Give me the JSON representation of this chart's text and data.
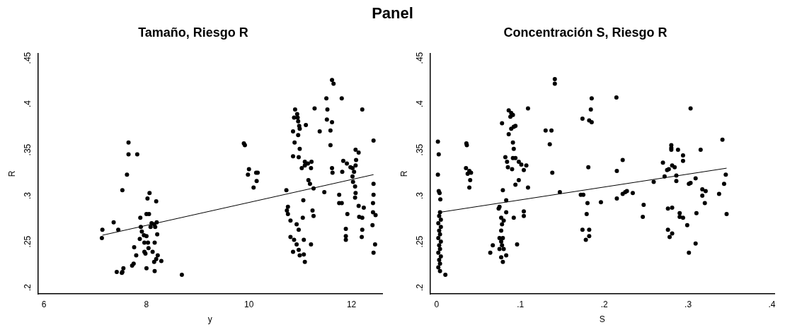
{
  "chart_data": [
    {
      "type": "scatter",
      "title": "Tamaño, Riesgo R",
      "annotations": [
        "Panel"
      ],
      "xlabel": "y",
      "ylabel": "R",
      "grid": false,
      "legend": false,
      "xlim": [
        5.88,
        12.6
      ],
      "ylim": [
        0.193,
        0.455
      ],
      "xticks": [
        6,
        8,
        10,
        12
      ],
      "yticks": [
        {
          "value": 0.2,
          "label": ".2"
        },
        {
          "value": 0.25,
          "label": ".25"
        },
        {
          "value": 0.3,
          "label": ".3"
        },
        {
          "value": 0.35,
          "label": ".35"
        },
        {
          "value": 0.4,
          "label": ".4"
        },
        {
          "value": 0.45,
          "label": ".45"
        }
      ],
      "series": [
        {
          "color": "#000000",
          "marker": "circle",
          "x": [
            7.65,
            7.65,
            7.82,
            7.62,
            7.53,
            8.06,
            8.02,
            8.19,
            7.88,
            8.0,
            8.05,
            7.36,
            7.14,
            7.13,
            7.45,
            7.89,
            8.1,
            8.15,
            8.2,
            8.08,
            8.17,
            8.21,
            7.91,
            7.95,
            8.0,
            7.87,
            7.96,
            8.03,
            8.16,
            8.04,
            7.76,
            7.8,
            7.96,
            7.98,
            8.12,
            8.22,
            8.19,
            8.15,
            8.29,
            7.75,
            7.72,
            7.42,
            7.53,
            7.55,
            7.52,
            8.0,
            8.16,
            8.69,
            9.9,
            9.92,
            10.0,
            9.98,
            10.14,
            10.17,
            10.15,
            10.09,
            10.73,
            10.9,
            10.94,
            10.95,
            10.96,
            10.98,
            10.99,
            10.88,
            11.11,
            10.86,
            10.96,
            10.89,
            10.99,
            10.86,
            10.97,
            11.03,
            11.09,
            11.15,
            11.22,
            11.21,
            11.09,
            11.16,
            11.19,
            11.26,
            11.06,
            10.76,
            10.74,
            10.76,
            10.81,
            11.24,
            11.26,
            10.93,
            11.05,
            10.97,
            10.81,
            10.88,
            10.93,
            10.86,
            10.97,
            10.99,
            11.07,
            11.09,
            11.07,
            11.21,
            11.28,
            11.38,
            11.47,
            11.51,
            11.53,
            11.52,
            11.62,
            11.59,
            11.59,
            11.62,
            11.63,
            11.62,
            11.65,
            11.81,
            11.82,
            11.84,
            11.91,
            11.76,
            11.76,
            11.81,
            11.92,
            11.89,
            11.89,
            11.89,
            11.98,
            12.02,
            12.08,
            12.05,
            12.02,
            12.03,
            12.07,
            12.08,
            12.07,
            12.08,
            12.14,
            12.09,
            12.21,
            12.14,
            12.24,
            12.15,
            12.21,
            12.21,
            12.2,
            12.43,
            12.43,
            12.43,
            12.42,
            12.42,
            12.47,
            12.41,
            12.46,
            12.43
          ],
          "values": [
            0.358,
            0.345,
            0.345,
            0.323,
            0.306,
            0.303,
            0.297,
            0.294,
            0.276,
            0.28,
            0.28,
            0.271,
            0.263,
            0.254,
            0.263,
            0.266,
            0.27,
            0.269,
            0.271,
            0.266,
            0.266,
            0.258,
            0.261,
            0.257,
            0.256,
            0.253,
            0.249,
            0.249,
            0.249,
            0.243,
            0.244,
            0.235,
            0.239,
            0.237,
            0.239,
            0.235,
            0.231,
            0.228,
            0.229,
            0.226,
            0.224,
            0.217,
            0.217,
            0.221,
            0.216,
            0.221,
            0.218,
            0.214,
            0.357,
            0.355,
            0.329,
            0.323,
            0.325,
            0.325,
            0.316,
            0.309,
            0.306,
            0.394,
            0.389,
            0.385,
            0.381,
            0.376,
            0.373,
            0.385,
            0.377,
            0.37,
            0.366,
            0.358,
            0.351,
            0.343,
            0.342,
            0.33,
            0.337,
            0.335,
            0.337,
            0.33,
            0.333,
            0.317,
            0.313,
            0.308,
            0.295,
            0.288,
            0.284,
            0.28,
            0.273,
            0.284,
            0.278,
            0.269,
            0.276,
            0.263,
            0.255,
            0.252,
            0.247,
            0.239,
            0.241,
            0.235,
            0.236,
            0.228,
            0.252,
            0.247,
            0.395,
            0.37,
            0.304,
            0.406,
            0.394,
            0.383,
            0.38,
            0.371,
            0.355,
            0.33,
            0.325,
            0.426,
            0.422,
            0.406,
            0.326,
            0.338,
            0.335,
            0.301,
            0.292,
            0.292,
            0.28,
            0.264,
            0.256,
            0.252,
            0.331,
            0.33,
            0.333,
            0.326,
            0.321,
            0.315,
            0.31,
            0.303,
            0.298,
            0.35,
            0.347,
            0.339,
            0.394,
            0.289,
            0.287,
            0.277,
            0.276,
            0.263,
            0.255,
            0.36,
            0.313,
            0.301,
            0.292,
            0.282,
            0.279,
            0.268,
            0.247,
            0.238
          ]
        },
        {
          "type": "line",
          "color": "#000000",
          "marker": "none",
          "x": [
            7.14,
            12.43
          ],
          "values": [
            0.257,
            0.323
          ]
        }
      ]
    },
    {
      "type": "scatter",
      "title": "Concentración S, Riesgo R",
      "xlabel": "S",
      "ylabel": "R",
      "grid": false,
      "legend": false,
      "xlim": [
        -0.008,
        0.403
      ],
      "ylim": [
        0.193,
        0.455
      ],
      "xticks": [
        0,
        {
          "value": 0.1,
          "label": ".1"
        },
        {
          "value": 0.2,
          "label": ".2"
        },
        {
          "value": 0.3,
          "label": ".3"
        },
        {
          "value": 0.4,
          "label": ".4"
        }
      ],
      "yticks": [
        {
          "value": 0.2,
          "label": ".2"
        },
        {
          "value": 0.25,
          "label": ".25"
        },
        {
          "value": 0.3,
          "label": ".3"
        },
        {
          "value": 0.35,
          "label": ".35"
        },
        {
          "value": 0.4,
          "label": ".4"
        },
        {
          "value": 0.45,
          "label": ".45"
        }
      ],
      "series": [
        {
          "color": "#000000",
          "marker": "circle",
          "x": [
            0.0015,
            0.0025,
            0.0015,
            0.0025,
            0.0035,
            0.0044,
            0.004,
            0.003,
            0.005,
            0.002,
            0.005,
            0.003,
            0.004,
            0.002,
            0.005,
            0.003,
            0.004,
            0.002,
            0.005,
            0.003,
            0.004,
            0.002,
            0.004,
            0.0104,
            0.0355,
            0.036,
            0.035,
            0.037,
            0.039,
            0.041,
            0.04,
            0.039,
            0.078,
            0.079,
            0.086,
            0.089,
            0.088,
            0.091,
            0.086,
            0.089,
            0.092,
            0.094,
            0.091,
            0.092,
            0.082,
            0.084,
            0.085,
            0.091,
            0.094,
            0.098,
            0.101,
            0.104,
            0.107,
            0.09,
            0.094,
            0.098,
            0.109,
            0.083,
            0.075,
            0.074,
            0.077,
            0.08,
            0.078,
            0.077,
            0.083,
            0.104,
            0.104,
            0.092,
            0.075,
            0.079,
            0.077,
            0.078,
            0.08,
            0.075,
            0.083,
            0.079,
            0.077,
            0.067,
            0.064,
            0.096,
            0.109,
            0.13,
            0.137,
            0.135,
            0.138,
            0.141,
            0.141,
            0.147,
            0.185,
            0.2145,
            0.184,
            0.174,
            0.182,
            0.185,
            0.181,
            0.222,
            0.215,
            0.172,
            0.175,
            0.18,
            0.196,
            0.179,
            0.215,
            0.222,
            0.225,
            0.227,
            0.234,
            0.247,
            0.246,
            0.174,
            0.182,
            0.178,
            0.182,
            0.259,
            0.27,
            0.272,
            0.275,
            0.277,
            0.281,
            0.284,
            0.28,
            0.28,
            0.28,
            0.288,
            0.294,
            0.294,
            0.286,
            0.286,
            0.301,
            0.303,
            0.309,
            0.315,
            0.317,
            0.321,
            0.317,
            0.32,
            0.276,
            0.281,
            0.29,
            0.29,
            0.294,
            0.31,
            0.299,
            0.276,
            0.281,
            0.278,
            0.309,
            0.301,
            0.303,
            0.337,
            0.341,
            0.343,
            0.345,
            0.346
          ],
          "values": [
            0.359,
            0.345,
            0.323,
            0.305,
            0.303,
            0.296,
            0.282,
            0.278,
            0.274,
            0.27,
            0.266,
            0.262,
            0.258,
            0.254,
            0.25,
            0.246,
            0.242,
            0.238,
            0.234,
            0.23,
            0.226,
            0.222,
            0.218,
            0.214,
            0.357,
            0.355,
            0.33,
            0.324,
            0.327,
            0.325,
            0.317,
            0.309,
            0.379,
            0.306,
            0.393,
            0.39,
            0.386,
            0.388,
            0.367,
            0.373,
            0.375,
            0.376,
            0.358,
            0.351,
            0.342,
            0.337,
            0.331,
            0.341,
            0.341,
            0.337,
            0.334,
            0.328,
            0.333,
            0.329,
            0.312,
            0.317,
            0.309,
            0.295,
            0.288,
            0.286,
            0.276,
            0.273,
            0.269,
            0.262,
            0.282,
            0.283,
            0.278,
            0.276,
            0.254,
            0.254,
            0.25,
            0.246,
            0.242,
            0.242,
            0.235,
            0.228,
            0.233,
            0.246,
            0.238,
            0.247,
            0.395,
            0.371,
            0.371,
            0.356,
            0.325,
            0.427,
            0.422,
            0.304,
            0.406,
            0.407,
            0.394,
            0.384,
            0.382,
            0.38,
            0.331,
            0.339,
            0.327,
            0.301,
            0.301,
            0.292,
            0.293,
            0.28,
            0.297,
            0.302,
            0.304,
            0.305,
            0.303,
            0.29,
            0.277,
            0.263,
            0.263,
            0.252,
            0.256,
            0.315,
            0.336,
            0.321,
            0.328,
            0.329,
            0.333,
            0.331,
            0.355,
            0.352,
            0.35,
            0.35,
            0.344,
            0.338,
            0.322,
            0.316,
            0.313,
            0.314,
            0.319,
            0.35,
            0.307,
            0.305,
            0.3,
            0.292,
            0.286,
            0.287,
            0.281,
            0.277,
            0.276,
            0.281,
            0.268,
            0.263,
            0.259,
            0.255,
            0.248,
            0.238,
            0.395,
            0.302,
            0.361,
            0.313,
            0.323,
            0.28
          ]
        },
        {
          "type": "line",
          "color": "#000000",
          "marker": "none",
          "x": [
            0.004,
            0.346
          ],
          "values": [
            0.282,
            0.33
          ]
        }
      ]
    }
  ]
}
